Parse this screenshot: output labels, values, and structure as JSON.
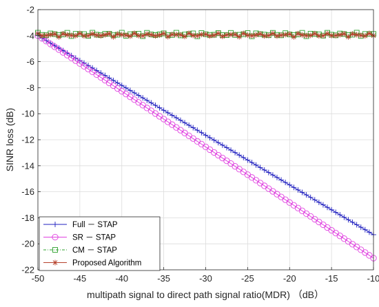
{
  "chart_data": {
    "type": "line",
    "xlabel": "multipath signal to direct path signal ratio(MDR)  （dB）",
    "ylabel": "SINR loss (dB)",
    "xlim": [
      -50,
      -10
    ],
    "ylim": [
      -22,
      -2
    ],
    "xticks": [
      "-50",
      "-45",
      "-40",
      "-35",
      "-30",
      "-25",
      "-20",
      "-15",
      "-10"
    ],
    "yticks": [
      "-2",
      "-4",
      "-6",
      "-8",
      "-10",
      "-12",
      "-14",
      "-16",
      "-18",
      "-20",
      "-22"
    ],
    "grid": true,
    "legend_position": "bottom-left",
    "x_step": 0.5,
    "series": [
      {
        "name": "Full － STAP",
        "marker": "plus",
        "color": "#1f1fbf",
        "start": [
          -50,
          -4.0
        ],
        "end": [
          -10,
          -19.3
        ]
      },
      {
        "name": "SR － STAP",
        "marker": "circle",
        "color": "#e040e0",
        "start": [
          -50,
          -4.0
        ],
        "end": [
          -10,
          -21.1
        ]
      },
      {
        "name": "CM － STAP",
        "marker": "square",
        "color": "#2ca02c",
        "level": -3.9
      },
      {
        "name": "Proposed Algorithm",
        "marker": "asterisk",
        "color": "#b5402a",
        "level": -3.95
      }
    ]
  }
}
